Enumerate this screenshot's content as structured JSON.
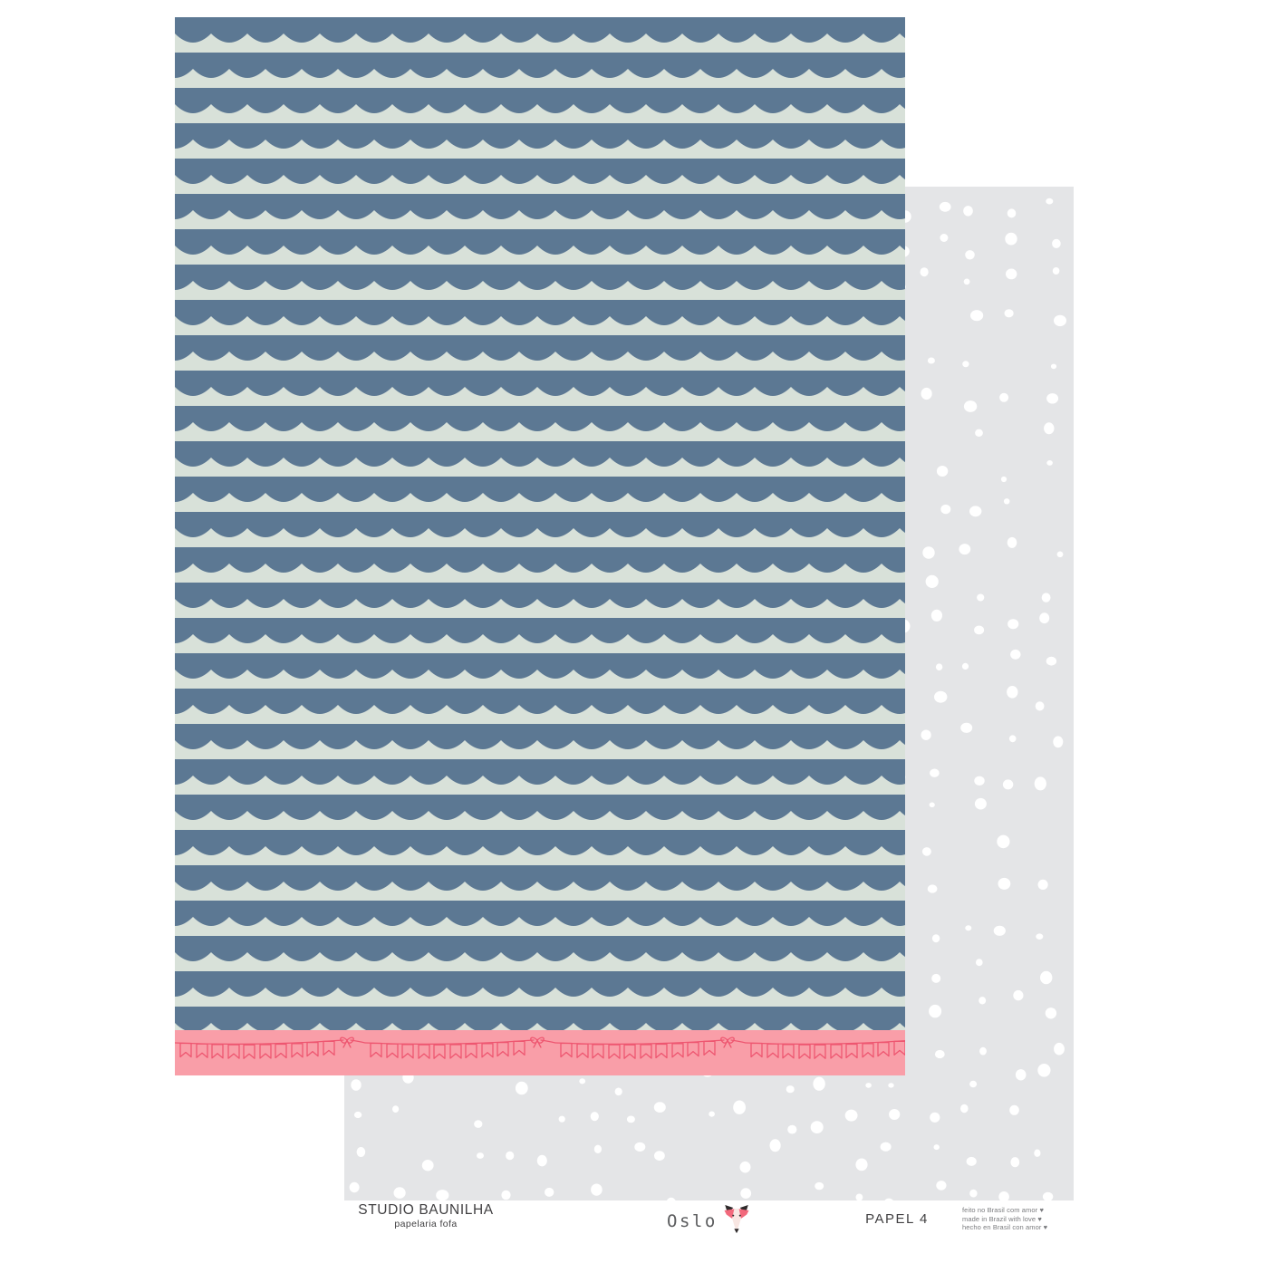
{
  "colors": {
    "page_white": "#ffffff",
    "wave_blue": "#5c7893",
    "mint": "#d8e1d9",
    "border_pink": "#f99ea8",
    "bunting_line": "#ee5670",
    "sheet_gray": "#e4e5e7",
    "dot_white": "#ffffff",
    "footer_dark": "#414042",
    "oslo_gray": "#5b5c5e",
    "small_gray": "#7a7b7e",
    "fox_dark": "#2e2a2b",
    "fox_coral": "#f2697c",
    "fox_pale": "#f8e6e2"
  },
  "sheets": {
    "front": {
      "pattern": "scallop-waves",
      "border_pattern": "bunting-banner-with-bows"
    },
    "back": {
      "pattern": "polka-dots",
      "dots": {
        "cell": 42,
        "jitter": 26,
        "r_min": 3,
        "r_max": 7.2,
        "skip": 0.1,
        "seed": 7
      }
    }
  },
  "footer": {
    "studio": {
      "name": "STUDIO BAUNILHA",
      "tagline": "papelaria fofa"
    },
    "collection": {
      "name": "Oslo",
      "icon": "fox"
    },
    "paper_label": "PAPEL 4",
    "made_in": [
      "feito no Brasil com amor ♥",
      "made in Brazil with love ♥",
      "hecho en Brasil con amor ♥"
    ]
  }
}
